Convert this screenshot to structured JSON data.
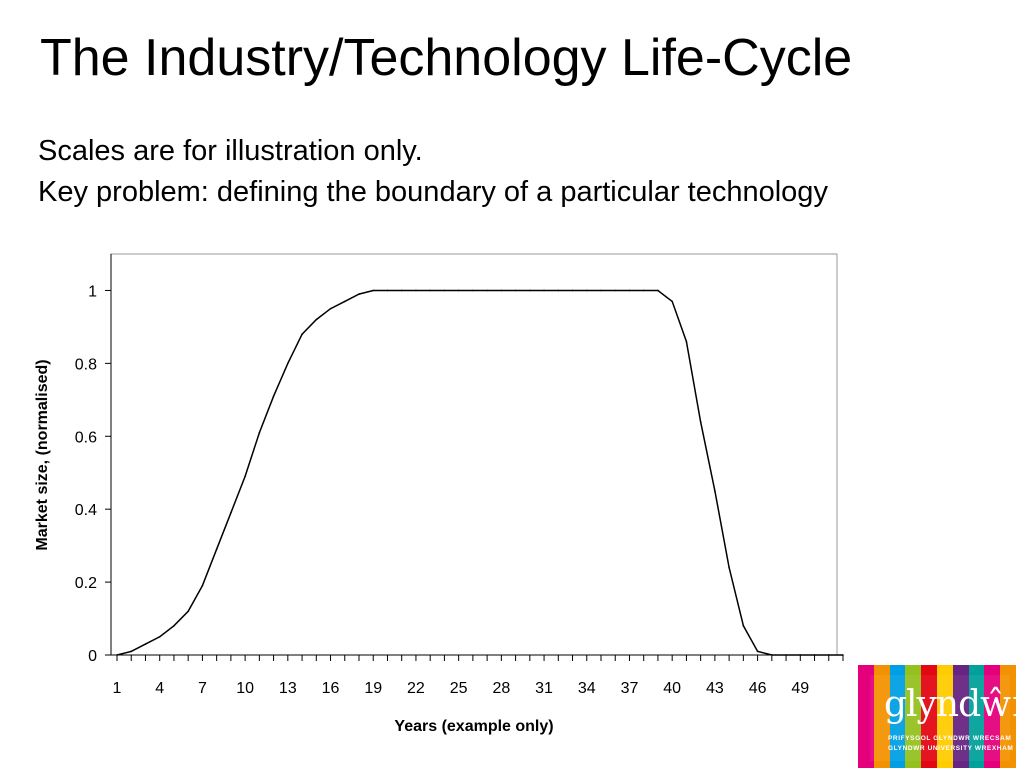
{
  "slide": {
    "title": "The Industry/Technology Life-Cycle",
    "subtitle_line1": "Scales are for illustration only.",
    "subtitle_line2": "Key problem: defining the boundary of a particular technology"
  },
  "logo": {
    "wordmark": "glyndŵr",
    "line1": "PRIFYSGOL GLYNDWR WRECSAM",
    "line2": "GLYNDWR UNIVERSITY WREXHAM",
    "stripe_colors": [
      "#e4007c",
      "#f39200",
      "#009fe3",
      "#95c11f",
      "#e30613",
      "#ffcc00",
      "#662483",
      "#00a19a",
      "#e4007c",
      "#f39200"
    ]
  },
  "chart_data": {
    "type": "line",
    "xlabel": "Years (example only)",
    "ylabel": "Market size, (normalised)",
    "x_tick_labels": [
      "1",
      "4",
      "7",
      "10",
      "13",
      "16",
      "19",
      "22",
      "25",
      "28",
      "31",
      "34",
      "37",
      "40",
      "43",
      "46",
      "49"
    ],
    "y_tick_labels": [
      "0",
      "0.2",
      "0.4",
      "0.6",
      "0.8",
      "1"
    ],
    "xlim": [
      1,
      52
    ],
    "ylim": [
      0,
      1.1
    ],
    "grid": false,
    "series": [
      {
        "x": [
          1,
          2,
          3,
          4,
          5,
          6,
          7,
          8,
          9,
          10,
          11,
          12,
          13,
          14,
          15,
          16,
          17,
          18,
          19,
          20,
          21,
          22,
          23,
          24,
          25,
          26,
          27,
          28,
          29,
          30,
          31,
          32,
          33,
          34,
          35,
          36,
          37,
          38,
          39,
          40,
          41,
          42,
          43,
          44,
          45,
          46,
          47,
          48,
          49,
          50,
          51,
          52
        ],
        "values": [
          0,
          0.01,
          0.03,
          0.05,
          0.08,
          0.12,
          0.19,
          0.29,
          0.39,
          0.49,
          0.61,
          0.71,
          0.8,
          0.88,
          0.92,
          0.95,
          0.97,
          0.99,
          1,
          1,
          1,
          1,
          1,
          1,
          1,
          1,
          1,
          1,
          1,
          1,
          1,
          1,
          1,
          1,
          1,
          1,
          1,
          1,
          1,
          0.97,
          0.86,
          0.64,
          0.45,
          0.24,
          0.08,
          0.01,
          0,
          0,
          0,
          0,
          0,
          0
        ]
      }
    ],
    "line_color": "#000000"
  }
}
